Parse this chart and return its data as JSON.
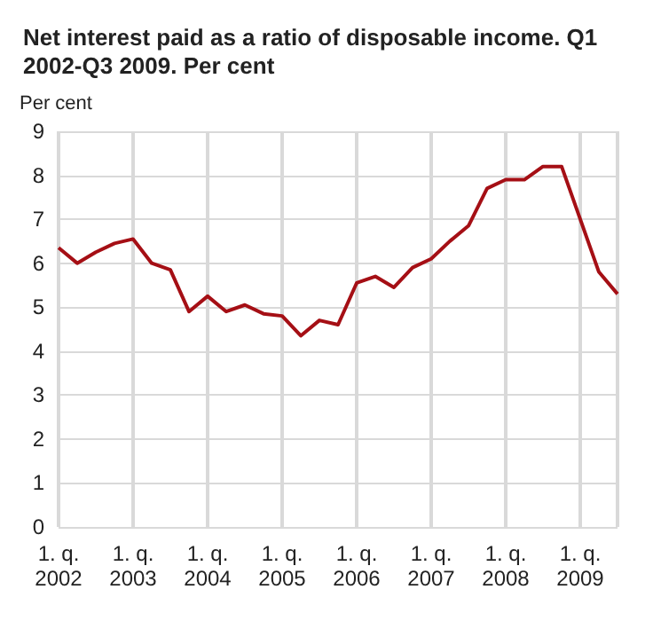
{
  "chart_data": {
    "type": "line",
    "title": "Net interest paid as a ratio of disposable income. Q1 2002-Q3 2009. Per cent",
    "ylabel": "Per cent",
    "categories": [
      "1. q.\n2002",
      null,
      null,
      null,
      "1. q.\n2003",
      null,
      null,
      null,
      "1. q.\n2004",
      null,
      null,
      null,
      "1. q.\n2005",
      null,
      null,
      null,
      "1. q.\n2006",
      null,
      null,
      null,
      "1. q.\n2007",
      null,
      null,
      null,
      "1. q.\n2008",
      null,
      null,
      null,
      "1. q.\n2009",
      null,
      null
    ],
    "series": [
      {
        "color": "#a50f15",
        "values": [
          6.35,
          6.0,
          6.25,
          6.45,
          6.55,
          6.0,
          5.85,
          4.9,
          5.25,
          4.9,
          5.05,
          4.85,
          4.8,
          4.35,
          4.7,
          4.6,
          5.55,
          5.7,
          5.45,
          5.9,
          6.1,
          6.5,
          6.85,
          7.7,
          7.9,
          7.9,
          8.2,
          8.2,
          7.0,
          5.8,
          5.3
        ]
      }
    ],
    "ylim": [
      0,
      9
    ],
    "yticks": [
      0,
      1,
      2,
      3,
      4,
      5,
      6,
      7,
      8,
      9
    ],
    "grid": true,
    "marker": "none",
    "line_style": "solid"
  }
}
